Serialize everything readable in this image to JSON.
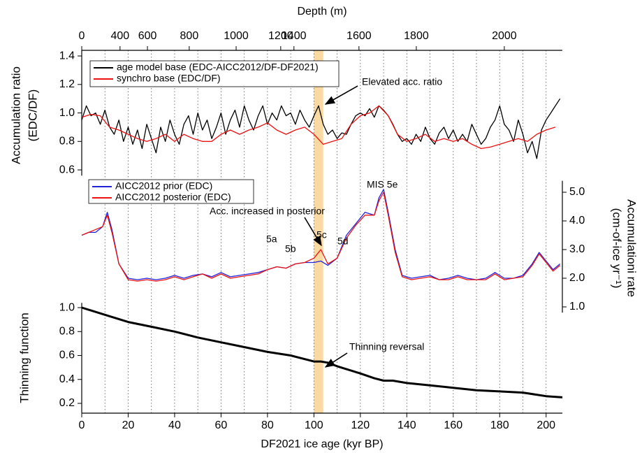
{
  "chart_data": {
    "type": "line",
    "xlabel": "DF2021 ice age (kyr BP)",
    "xlim": [
      0,
      207
    ],
    "xticks": [
      0,
      20,
      40,
      60,
      80,
      100,
      120,
      140,
      160,
      180,
      200
    ],
    "xgrid": [
      10,
      20,
      30,
      40,
      50,
      60,
      70,
      80,
      90,
      100,
      110,
      120,
      130,
      140,
      150,
      160,
      170,
      180,
      190,
      200
    ],
    "highlight": [
      100,
      104
    ],
    "highlight_color": "#fbd9a3",
    "top_axis": {
      "label": "Depth (m)",
      "ticks": [
        {
          "depth": 0,
          "age": 0
        },
        {
          "depth": 400,
          "age": 16.5
        },
        {
          "depth": 600,
          "age": 28.3
        },
        {
          "depth": 800,
          "age": 46.3
        },
        {
          "depth": 1000,
          "age": 66.5
        },
        {
          "depth": 1200,
          "age": 85.7
        },
        {
          "depth": 1400,
          "age": 91.4
        },
        {
          "depth": 1600,
          "age": 119.4
        },
        {
          "depth": 1800,
          "age": 144.1
        },
        {
          "depth": 2000,
          "age": 182
        }
      ]
    },
    "panels": [
      {
        "ylabel": [
          "Accumulation ratio",
          "(EDC/DF)"
        ],
        "axis_side": "left",
        "ylim": [
          0.56,
          1.44
        ],
        "yticks": [
          0.6,
          0.8,
          {
            "value": 1,
            "label": "1.0"
          },
          1.2,
          1.4
        ],
        "series": [
          {
            "name": "age model base (EDC-AICC2012/DF-DF2021)",
            "color": "#000000",
            "x": [
              0,
              2,
              4,
              6,
              8,
              10,
              12,
              14,
              16,
              18,
              20,
              22,
              24,
              26,
              28,
              30,
              32,
              34,
              36,
              38,
              40,
              42,
              44,
              46,
              48,
              50,
              52,
              54,
              56,
              58,
              60,
              62,
              64,
              66,
              68,
              70,
              72,
              74,
              76,
              78,
              80,
              82,
              84,
              86,
              88,
              90,
              92,
              94,
              96,
              98,
              100,
              102,
              104,
              106,
              108,
              110,
              112,
              114,
              116,
              118,
              120,
              122,
              124,
              126,
              128,
              130,
              132,
              134,
              136,
              138,
              140,
              142,
              144,
              146,
              148,
              150,
              152,
              154,
              156,
              158,
              160,
              162,
              164,
              166,
              168,
              170,
              172,
              174,
              176,
              178,
              180,
              182,
              184,
              186,
              188,
              190,
              192,
              194,
              196,
              198,
              200,
              202,
              204,
              206
            ],
            "values": [
              0.95,
              1.05,
              0.98,
              1.0,
              0.92,
              1.02,
              0.9,
              0.85,
              0.95,
              0.8,
              0.9,
              0.78,
              0.88,
              0.75,
              0.92,
              0.82,
              0.72,
              0.9,
              0.8,
              0.95,
              0.85,
              0.78,
              0.92,
              0.98,
              0.85,
              1.0,
              0.88,
              0.95,
              0.82,
              0.9,
              1.0,
              0.85,
              0.95,
              1.02,
              0.9,
              1.05,
              0.95,
              0.88,
              0.98,
              1.05,
              0.92,
              1.0,
              0.95,
              1.05,
              0.98,
              1.0,
              0.92,
              1.02,
              0.95,
              0.9,
              0.98,
              1.05,
              0.92,
              0.85,
              0.88,
              0.82,
              0.86,
              0.85,
              0.92,
              0.98,
              1.0,
              0.98,
              1.03,
              0.97,
              1.05,
              1.02,
              0.98,
              0.92,
              0.85,
              0.8,
              0.82,
              0.78,
              0.85,
              0.8,
              0.9,
              0.82,
              0.78,
              0.86,
              0.9,
              0.82,
              0.88,
              0.8,
              0.85,
              0.8,
              0.92,
              0.85,
              0.78,
              0.82,
              0.9,
              0.95,
              1.05,
              0.92,
              0.88,
              0.8,
              0.95,
              0.85,
              0.72,
              0.8,
              0.68,
              0.88,
              0.95,
              1.0,
              1.05,
              1.1
            ]
          },
          {
            "name": "synchro base (EDC/DF)",
            "color": "#ee1111",
            "x": [
              0,
              4,
              8,
              12,
              16,
              20,
              24,
              28,
              32,
              36,
              40,
              44,
              48,
              52,
              56,
              60,
              64,
              68,
              72,
              76,
              80,
              84,
              88,
              92,
              96,
              100,
              104,
              108,
              112,
              116,
              120,
              124,
              128,
              132,
              136,
              140,
              144,
              148,
              152,
              156,
              160,
              164,
              168,
              172,
              176,
              180,
              184,
              188,
              192,
              196,
              200,
              204
            ],
            "values": [
              0.97,
              0.99,
              0.98,
              0.9,
              0.88,
              0.85,
              0.82,
              0.8,
              0.82,
              0.85,
              0.8,
              0.85,
              0.82,
              0.8,
              0.8,
              0.85,
              0.88,
              0.85,
              0.88,
              0.9,
              0.93,
              0.88,
              0.85,
              0.88,
              0.9,
              0.85,
              0.78,
              0.8,
              0.82,
              0.92,
              0.98,
              1.0,
              1.05,
              0.98,
              0.85,
              0.8,
              0.82,
              0.85,
              0.8,
              0.82,
              0.8,
              0.82,
              0.78,
              0.75,
              0.76,
              0.78,
              0.8,
              0.82,
              0.8,
              0.85,
              0.88,
              0.9
            ]
          }
        ]
      },
      {
        "ylabel": [
          "Accumulationi rate",
          "(cm-of-ice yr⁻¹)"
        ],
        "axis_side": "right",
        "ylim": [
          0.8,
          5.4
        ],
        "yticks": [
          {
            "value": 1,
            "label": "1.0"
          },
          {
            "value": 2,
            "label": "2.0"
          },
          {
            "value": 3,
            "label": "3.0"
          },
          {
            "value": 4,
            "label": "4.0"
          },
          {
            "value": 5,
            "label": "5.0"
          }
        ],
        "series": [
          {
            "name": "AICC2012 prior (EDC)",
            "color": "#2222dd",
            "x": [
              0,
              3,
              6,
              9,
              11,
              13,
              16,
              20,
              24,
              28,
              32,
              36,
              40,
              44,
              48,
              52,
              56,
              60,
              64,
              68,
              72,
              76,
              80,
              84,
              88,
              92,
              96,
              100,
              103,
              106,
              110,
              114,
              118,
              122,
              126,
              128,
              130,
              132,
              135,
              138,
              142,
              146,
              150,
              154,
              158,
              162,
              166,
              170,
              174,
              178,
              182,
              186,
              190,
              194,
              197,
              200,
              203,
              206
            ],
            "values": [
              3.5,
              3.6,
              3.6,
              3.8,
              4.3,
              3.7,
              2.5,
              2.0,
              1.95,
              2.0,
              1.95,
              2.0,
              2.1,
              2.0,
              2.1,
              2.15,
              2.05,
              2.2,
              2.05,
              2.1,
              2.15,
              2.2,
              2.3,
              2.4,
              2.35,
              2.5,
              2.55,
              2.55,
              2.6,
              2.45,
              2.7,
              3.5,
              3.9,
              4.3,
              4.2,
              4.8,
              5.1,
              4.3,
              3.0,
              2.1,
              2.0,
              2.05,
              2.1,
              1.95,
              2.0,
              2.1,
              2.0,
              1.95,
              2.0,
              2.2,
              2.0,
              2.0,
              2.1,
              2.5,
              2.9,
              2.6,
              2.3,
              2.5
            ]
          },
          {
            "name": "AICC2012 posterior (EDC)",
            "color": "#ee1111",
            "x": [
              0,
              3,
              6,
              9,
              11,
              13,
              16,
              20,
              24,
              28,
              32,
              36,
              40,
              44,
              48,
              52,
              56,
              60,
              64,
              68,
              72,
              76,
              80,
              84,
              88,
              92,
              96,
              100,
              103,
              106,
              110,
              114,
              118,
              122,
              126,
              128,
              130,
              132,
              135,
              138,
              142,
              146,
              150,
              154,
              158,
              162,
              166,
              170,
              174,
              178,
              182,
              186,
              190,
              194,
              197,
              200,
              203,
              206
            ],
            "values": [
              3.5,
              3.6,
              3.7,
              3.8,
              4.2,
              3.6,
              2.5,
              1.95,
              1.9,
              1.95,
              1.9,
              1.95,
              2.05,
              1.95,
              2.05,
              2.15,
              2.0,
              2.15,
              2.0,
              2.05,
              2.1,
              2.15,
              2.3,
              2.4,
              2.35,
              2.5,
              2.55,
              2.7,
              3.0,
              2.5,
              2.7,
              3.4,
              3.85,
              4.2,
              4.2,
              4.7,
              5.0,
              4.2,
              2.9,
              2.05,
              1.95,
              2.0,
              2.05,
              1.95,
              1.95,
              2.05,
              1.95,
              1.95,
              1.95,
              2.15,
              1.95,
              2.0,
              2.05,
              2.45,
              2.85,
              2.55,
              2.25,
              2.45
            ]
          }
        ]
      },
      {
        "ylabel": [
          "Thinning function"
        ],
        "axis_side": "left",
        "ylim": [
          0.12,
          1.04
        ],
        "yticks": [
          0.2,
          0.4,
          0.6,
          0.8,
          {
            "value": 1,
            "label": "1.0"
          }
        ],
        "series": [
          {
            "color": "#000000",
            "x": [
              0,
              10,
              20,
              30,
              40,
              50,
              60,
              70,
              80,
              90,
              100,
              103,
              106,
              110,
              120,
              126,
              130,
              134,
              140,
              150,
              160,
              170,
              180,
              190,
              200,
              207
            ],
            "values": [
              1.0,
              0.94,
              0.88,
              0.84,
              0.8,
              0.75,
              0.71,
              0.67,
              0.63,
              0.6,
              0.55,
              0.55,
              0.54,
              0.51,
              0.45,
              0.41,
              0.39,
              0.39,
              0.37,
              0.35,
              0.33,
              0.31,
              0.3,
              0.29,
              0.26,
              0.25
            ]
          }
        ]
      }
    ],
    "annotations": [
      "Elevated acc. ratio",
      "Acc. increased in posterior",
      "Thinning reversal",
      "MIS 5e",
      "5a",
      "5b",
      "5c",
      "5d"
    ]
  }
}
